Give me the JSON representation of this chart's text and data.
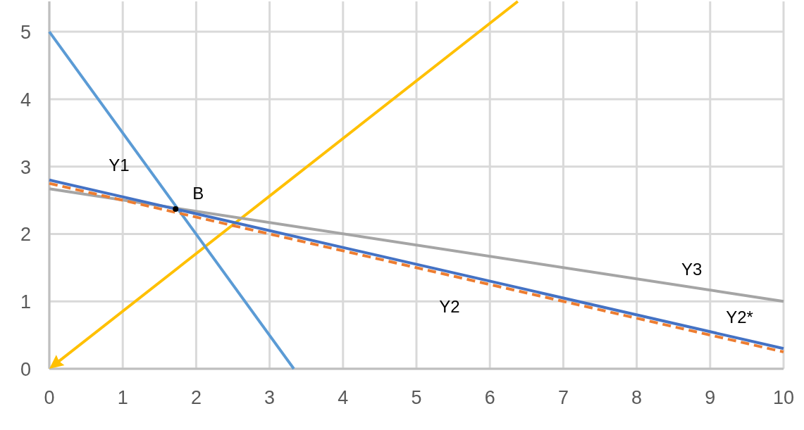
{
  "chart_data": {
    "type": "line",
    "xlim": [
      0,
      10
    ],
    "ylim": [
      0,
      5.45
    ],
    "xticks": [
      0,
      1,
      2,
      3,
      4,
      5,
      6,
      7,
      8,
      9,
      10
    ],
    "yticks": [
      0,
      1,
      2,
      3,
      4,
      5
    ],
    "grid": true,
    "marker": "none",
    "series": [
      {
        "name": "Y1",
        "color": "#5b9bd5",
        "x": [
          0,
          3.33
        ],
        "values": [
          5,
          0
        ]
      },
      {
        "name": "Y3",
        "color": "#a5a5a5",
        "x": [
          0,
          10
        ],
        "values": [
          2.67,
          1.0
        ]
      },
      {
        "name": "Y2*",
        "color": "#ed7d31",
        "x": [
          0,
          10
        ],
        "values": [
          2.75,
          0.25
        ],
        "line_style": "dashed"
      },
      {
        "name": "Y2",
        "color": "#4472c4",
        "x": [
          0,
          10
        ],
        "values": [
          2.8,
          0.3
        ]
      },
      {
        "name": "B",
        "type": "scatter",
        "color": "#000000",
        "marker": "circle",
        "x": [
          1.72
        ],
        "values": [
          2.37
        ]
      }
    ]
  }
}
